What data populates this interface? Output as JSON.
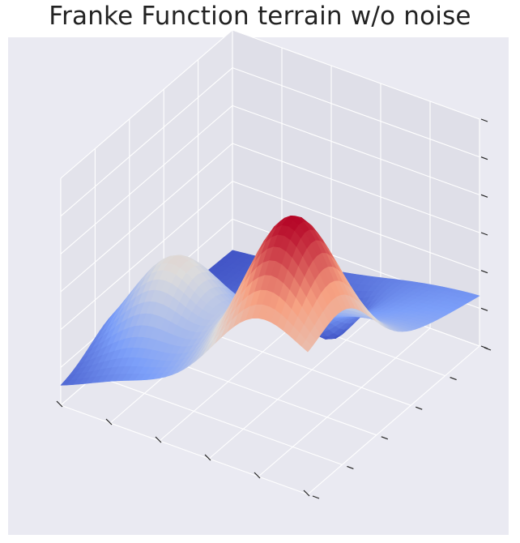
{
  "chart_data": {
    "type": "surface",
    "title": "Franke Function terrain w/o noise",
    "function": "Franke",
    "noise": false,
    "x_range": [
      0,
      1
    ],
    "y_range": [
      0,
      1
    ],
    "z_range": [
      0.0,
      1.22
    ],
    "colormap": "coolwarm",
    "grid": true,
    "tick_labels_shown": false,
    "axes_background": "#eaeaf2",
    "pane_colors": [
      "#e3e3eb",
      "#dfdfe8",
      "#e7e7ef"
    ],
    "grid_color": "#ffffff"
  }
}
